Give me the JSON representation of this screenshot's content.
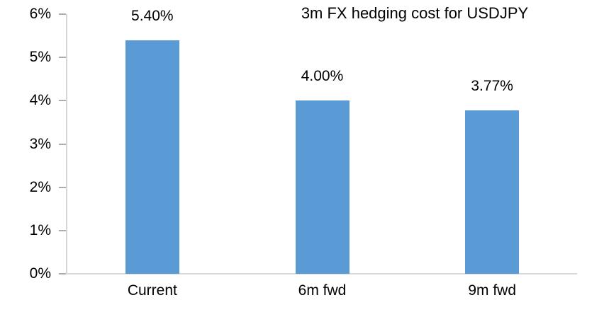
{
  "chart_data": {
    "type": "bar",
    "title": "3m FX hedging cost for USDJPY",
    "categories": [
      "Current",
      "6m fwd",
      "9m fwd"
    ],
    "values": [
      5.4,
      4.0,
      3.77
    ],
    "data_labels": [
      "5.40%",
      "4.00%",
      "3.77%"
    ],
    "xlabel": "",
    "ylabel": "",
    "ylim": [
      0,
      6
    ],
    "ytick_labels": [
      "0%",
      "1%",
      "2%",
      "3%",
      "4%",
      "5%",
      "6%"
    ],
    "grid": false,
    "legend": false,
    "colors": {
      "bar": "#5b9bd5",
      "axis_line": "#d6d6d6",
      "tick": "#acacac",
      "text": "#000000",
      "background": "#ffffff"
    }
  }
}
